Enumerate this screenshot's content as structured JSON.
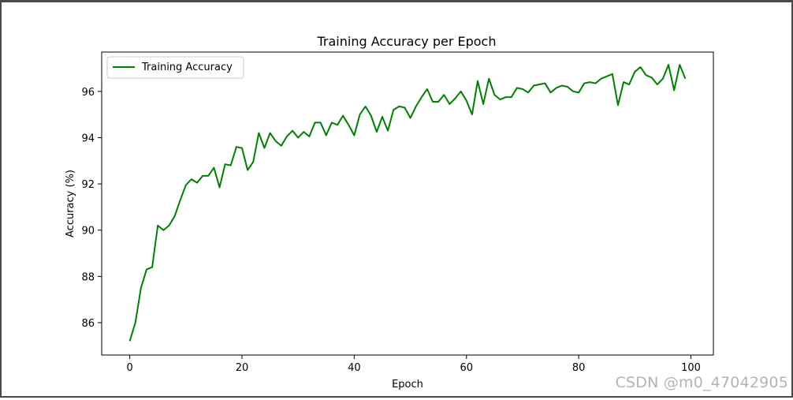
{
  "chart_data": {
    "type": "line",
    "title": "Training Accuracy per Epoch",
    "xlabel": "Epoch",
    "ylabel": "Accuracy (%)",
    "xlim": [
      -5,
      104
    ],
    "ylim": [
      84.6,
      97.7
    ],
    "xticks": [
      0,
      20,
      40,
      60,
      80,
      100
    ],
    "yticks": [
      86,
      88,
      90,
      92,
      94,
      96
    ],
    "grid": false,
    "legend_position": "upper-left",
    "series": [
      {
        "name": "Training Accuracy",
        "color": "#008000",
        "x": [
          0,
          1,
          2,
          3,
          4,
          5,
          6,
          7,
          8,
          9,
          10,
          11,
          12,
          13,
          14,
          15,
          16,
          17,
          18,
          19,
          20,
          21,
          22,
          23,
          24,
          25,
          26,
          27,
          28,
          29,
          30,
          31,
          32,
          33,
          34,
          35,
          36,
          37,
          38,
          39,
          40,
          41,
          42,
          43,
          44,
          45,
          46,
          47,
          48,
          49,
          50,
          51,
          52,
          53,
          54,
          55,
          56,
          57,
          58,
          59,
          60,
          61,
          62,
          63,
          64,
          65,
          66,
          67,
          68,
          69,
          70,
          71,
          72,
          73,
          74,
          75,
          76,
          77,
          78,
          79,
          80,
          81,
          82,
          83,
          84,
          85,
          86,
          87,
          88,
          89,
          90,
          91,
          92,
          93,
          94,
          95,
          96,
          97,
          98,
          99
        ],
        "values": [
          85.2,
          86.0,
          87.5,
          88.3,
          88.4,
          90.2,
          90.0,
          90.2,
          90.6,
          91.3,
          91.95,
          92.2,
          92.05,
          92.35,
          92.35,
          92.7,
          91.85,
          92.85,
          92.8,
          93.6,
          93.55,
          92.6,
          92.95,
          94.2,
          93.55,
          94.2,
          93.85,
          93.65,
          94.05,
          94.3,
          94.0,
          94.25,
          94.05,
          94.65,
          94.65,
          94.1,
          94.65,
          94.55,
          94.95,
          94.55,
          94.1,
          95.0,
          95.35,
          94.95,
          94.25,
          94.9,
          94.3,
          95.2,
          95.35,
          95.3,
          94.85,
          95.35,
          95.75,
          96.1,
          95.55,
          95.55,
          95.85,
          95.45,
          95.7,
          96.0,
          95.6,
          95.0,
          96.45,
          95.45,
          96.55,
          95.85,
          95.65,
          95.75,
          95.75,
          96.15,
          96.1,
          95.95,
          96.25,
          96.3,
          96.35,
          95.95,
          96.15,
          96.25,
          96.2,
          96.0,
          95.95,
          96.35,
          96.4,
          96.35,
          96.55,
          96.65,
          96.75,
          95.4,
          96.4,
          96.3,
          96.85,
          97.05,
          96.7,
          96.6,
          96.3,
          96.55,
          97.15,
          96.05,
          97.15,
          96.55
        ]
      }
    ]
  },
  "watermark_text": "CSDN @m0_47042905"
}
